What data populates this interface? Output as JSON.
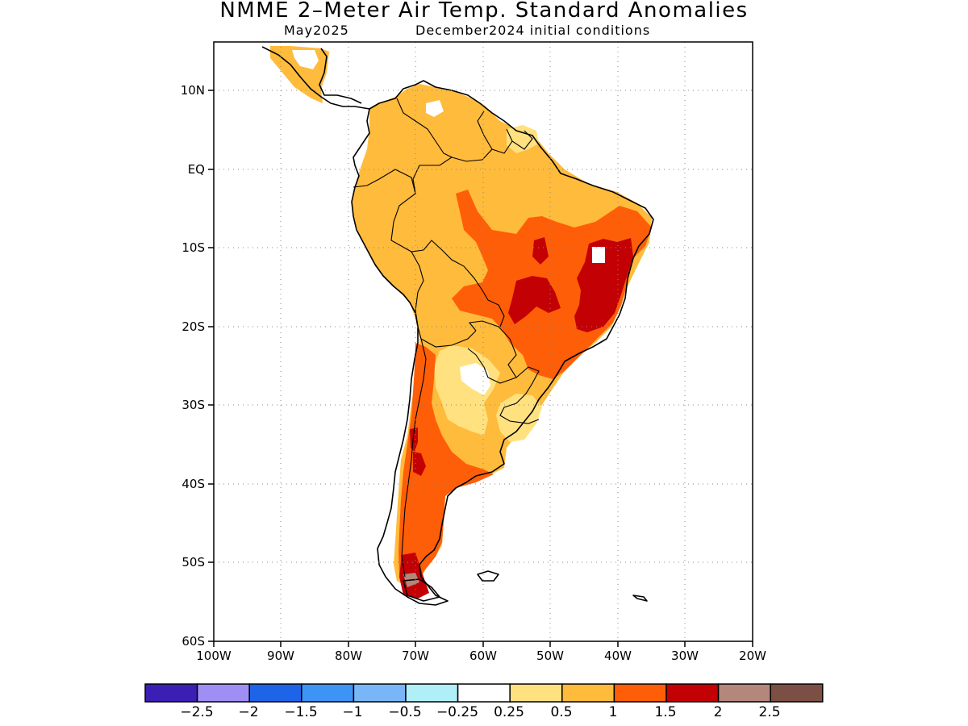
{
  "title": "NMME 2–Meter Air Temp. Standard Anomalies",
  "subtitle_month": "May2025",
  "subtitle_init": "December2024 initial conditions",
  "axes": {
    "lat_labels": [
      "10N",
      "EQ",
      "10S",
      "20S",
      "30S",
      "40S",
      "50S",
      "60S"
    ],
    "lon_labels": [
      "100W",
      "90W",
      "80W",
      "70W",
      "60W",
      "50W",
      "40W",
      "30W",
      "20W"
    ]
  },
  "colorbar": {
    "colors": [
      "#3b1fb5",
      "#9f8ff5",
      "#1e64e8",
      "#3d94f4",
      "#78b6f7",
      "#b0eef8",
      "#ffffff",
      "#ffe17f",
      "#ffbb3c",
      "#ff5e08",
      "#c30004",
      "#b3877a",
      "#7b4f43"
    ],
    "labels": [
      "−2.5",
      "−2",
      "−1.5",
      "−1",
      "−0.5",
      "−0.25",
      "0.25",
      "0.5",
      "1",
      "1.5",
      "2",
      "2.5"
    ]
  },
  "map": {
    "region": "South America",
    "lat_range": [
      "15N",
      "60S"
    ],
    "lon_range": [
      "100W",
      "20W"
    ],
    "grid": "dotted",
    "anomaly_areas": [
      {
        "level": "0.5 to 1",
        "color": "#ffbb3c",
        "where": "most of northern and central South America"
      },
      {
        "level": "1 to 1.5",
        "color": "#ff5e08",
        "where": "central/eastern Brazil, western Argentina, southern Andes"
      },
      {
        "level": "1.5 to 2",
        "color": "#c30004",
        "where": "eastern Brazil (Bahia, Minas Gerais), southern Chile"
      },
      {
        "level": "0.25 to 0.5",
        "color": "#ffe17f",
        "where": "northern Argentina, Paraguay, Uruguay, Guianas"
      },
      {
        "level": "2 to 2.5",
        "color": "#b3877a",
        "where": "Tierra del Fuego"
      }
    ]
  }
}
